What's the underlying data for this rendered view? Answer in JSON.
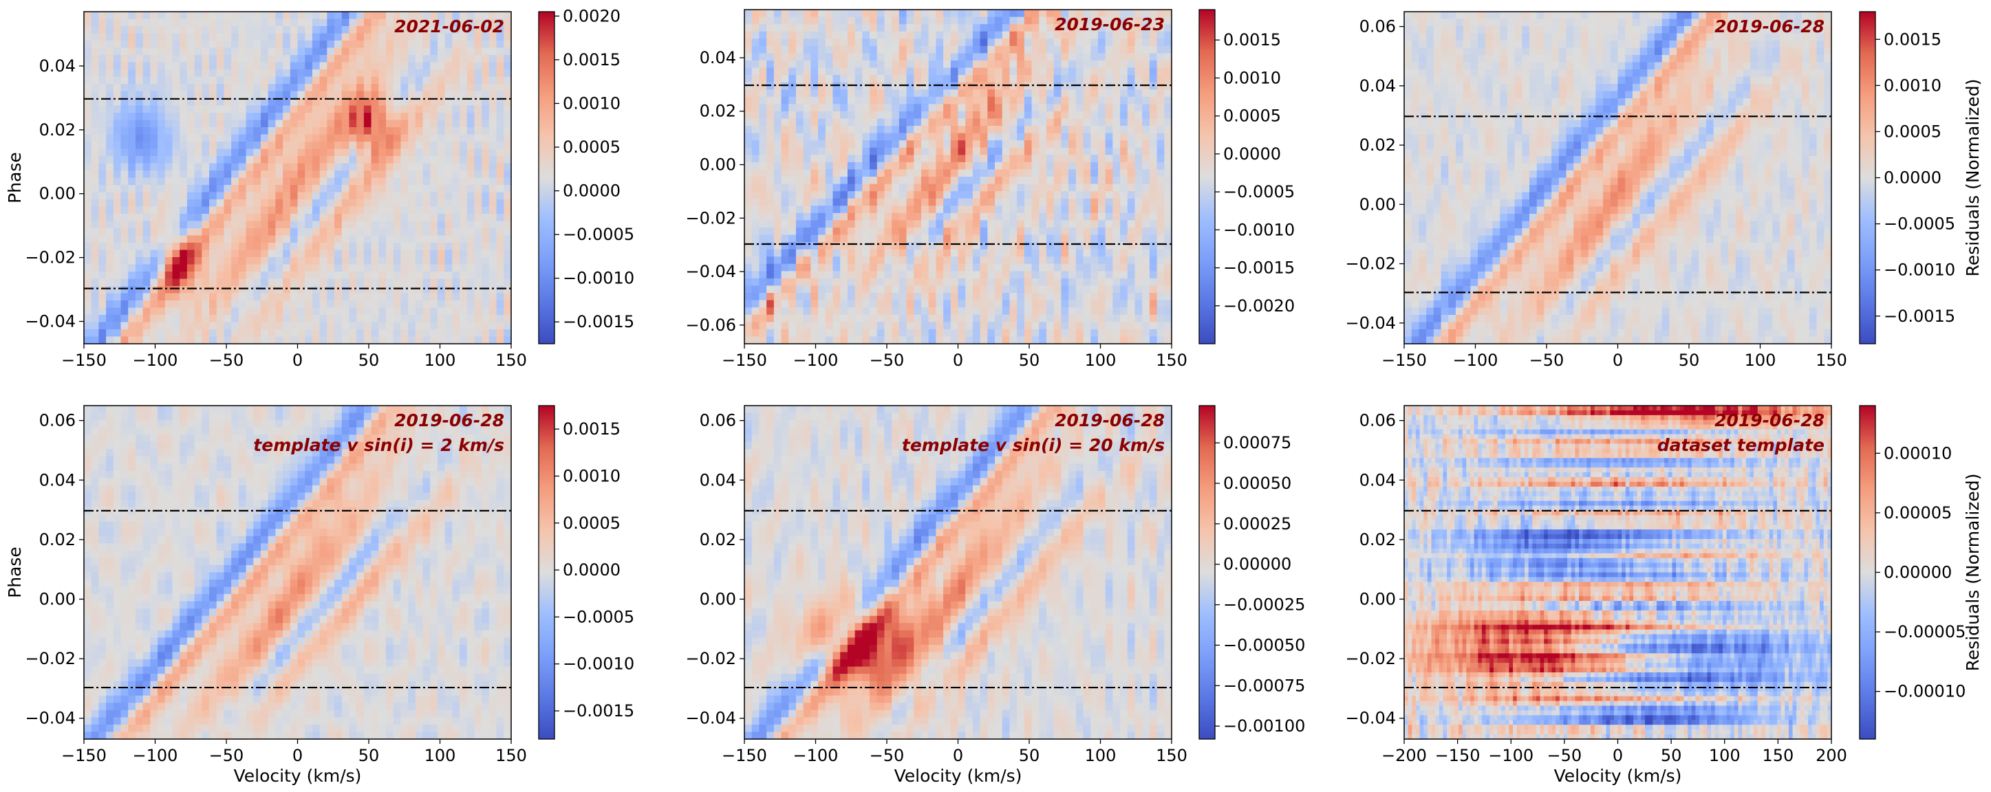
{
  "chart_data": [
    {
      "type": "heatmap",
      "annotation": [
        "2021-06-02"
      ],
      "xlim": [
        -150,
        150
      ],
      "xticks": [
        -150,
        -100,
        -50,
        0,
        50,
        100,
        150
      ],
      "xlabel": "",
      "ylim": [
        -0.047,
        0.057
      ],
      "yticks": [
        -0.04,
        -0.02,
        0.0,
        0.02,
        0.04
      ],
      "ylabel": "Phase",
      "hlines": [
        0.0297,
        -0.0297
      ],
      "colorbar": {
        "min": -0.00175,
        "max": 0.00205,
        "ticks": [
          "0.0020",
          "0.0015",
          "0.0010",
          "0.0005",
          "0.0000",
          "−0.0005",
          "−0.0010",
          "−0.0015"
        ],
        "tick_values": [
          0.002,
          0.0015,
          0.001,
          0.0005,
          0.0,
          -0.0005,
          -0.001,
          -0.0015
        ],
        "label": ""
      }
    },
    {
      "type": "heatmap",
      "annotation": [
        "2019-06-23"
      ],
      "xlim": [
        -150,
        150
      ],
      "xticks": [
        -150,
        -100,
        -50,
        0,
        50,
        100,
        150
      ],
      "xlabel": "",
      "ylim": [
        -0.067,
        0.058
      ],
      "yticks": [
        -0.06,
        -0.04,
        -0.02,
        0.0,
        0.02,
        0.04
      ],
      "ylabel": "",
      "hlines": [
        0.0297,
        -0.0297
      ],
      "colorbar": {
        "min": -0.0025,
        "max": 0.0019,
        "ticks": [
          "0.0015",
          "0.0010",
          "0.0005",
          "0.0000",
          "−0.0005",
          "−0.0010",
          "−0.0015",
          "−0.0020"
        ],
        "tick_values": [
          0.0015,
          0.001,
          0.0005,
          0.0,
          -0.0005,
          -0.001,
          -0.0015,
          -0.002
        ],
        "label": ""
      }
    },
    {
      "type": "heatmap",
      "annotation": [
        "2019-06-28"
      ],
      "xlim": [
        -150,
        150
      ],
      "xticks": [
        -150,
        -100,
        -50,
        0,
        50,
        100,
        150
      ],
      "xlabel": "",
      "ylim": [
        -0.047,
        0.065
      ],
      "yticks": [
        -0.04,
        -0.02,
        0.0,
        0.02,
        0.04,
        0.06
      ],
      "ylabel": "",
      "hlines": [
        0.0297,
        -0.0297
      ],
      "colorbar": {
        "min": -0.0018,
        "max": 0.0018,
        "ticks": [
          "0.0015",
          "0.0010",
          "0.0005",
          "0.0000",
          "−0.0005",
          "−0.0010",
          "−0.0015"
        ],
        "tick_values": [
          0.0015,
          0.001,
          0.0005,
          0.0,
          -0.0005,
          -0.001,
          -0.0015
        ],
        "label": "Residuals (Normalized)"
      }
    },
    {
      "type": "heatmap",
      "annotation": [
        "2019-06-28",
        "template v sin(i) = 2 km/s"
      ],
      "xlim": [
        -150,
        150
      ],
      "xticks": [
        -150,
        -100,
        -50,
        0,
        50,
        100,
        150
      ],
      "xlabel": "Velocity (km/s)",
      "ylim": [
        -0.047,
        0.065
      ],
      "yticks": [
        -0.04,
        -0.02,
        0.0,
        0.02,
        0.04,
        0.06
      ],
      "ylabel": "Phase",
      "hlines": [
        0.0297,
        -0.0297
      ],
      "colorbar": {
        "min": -0.0018,
        "max": 0.00175,
        "ticks": [
          "0.0015",
          "0.0010",
          "0.0005",
          "0.0000",
          "−0.0005",
          "−0.0010",
          "−0.0015"
        ],
        "tick_values": [
          0.0015,
          0.001,
          0.0005,
          0.0,
          -0.0005,
          -0.001,
          -0.0015
        ],
        "label": ""
      }
    },
    {
      "type": "heatmap",
      "annotation": [
        "2019-06-28",
        "template v sin(i) = 20 km/s"
      ],
      "xlim": [
        -150,
        150
      ],
      "xticks": [
        -150,
        -100,
        -50,
        0,
        50,
        100,
        150
      ],
      "xlabel": "Velocity (km/s)",
      "ylim": [
        -0.047,
        0.065
      ],
      "yticks": [
        -0.04,
        -0.02,
        0.0,
        0.02,
        0.04,
        0.06
      ],
      "ylabel": "",
      "hlines": [
        0.0297,
        -0.0297
      ],
      "colorbar": {
        "min": -0.00108,
        "max": 0.00098,
        "ticks": [
          "0.00075",
          "0.00050",
          "0.00025",
          "0.00000",
          "−0.00025",
          "−0.00050",
          "−0.00075",
          "−0.00100"
        ],
        "tick_values": [
          0.00075,
          0.0005,
          0.00025,
          0.0,
          -0.00025,
          -0.0005,
          -0.00075,
          -0.001
        ],
        "label": ""
      }
    },
    {
      "type": "heatmap",
      "annotation": [
        "2019-06-28",
        "dataset template"
      ],
      "xlim": [
        -200,
        200
      ],
      "xticks": [
        -200,
        -150,
        -100,
        -50,
        0,
        50,
        100,
        150,
        200
      ],
      "xlabel": "Velocity (km/s)",
      "ylim": [
        -0.047,
        0.065
      ],
      "yticks": [
        -0.04,
        -0.02,
        0.0,
        0.02,
        0.04,
        0.06
      ],
      "ylabel": "",
      "hlines": [
        0.0297,
        -0.0297
      ],
      "colorbar": {
        "min": -0.00014,
        "max": 0.00014,
        "ticks": [
          "0.00010",
          "0.00005",
          "0.00000",
          "−0.00005",
          "−0.00010"
        ],
        "tick_values": [
          0.0001,
          5e-05,
          0.0,
          -5e-05,
          -0.0001
        ],
        "label": "Residuals (Normalized)"
      }
    }
  ],
  "colors": {
    "cmap_low": "#3b4cc0",
    "cmap_mid": "#dddddd",
    "cmap_high": "#b40426",
    "annotation": "#8b0000",
    "hline": "#000000"
  }
}
